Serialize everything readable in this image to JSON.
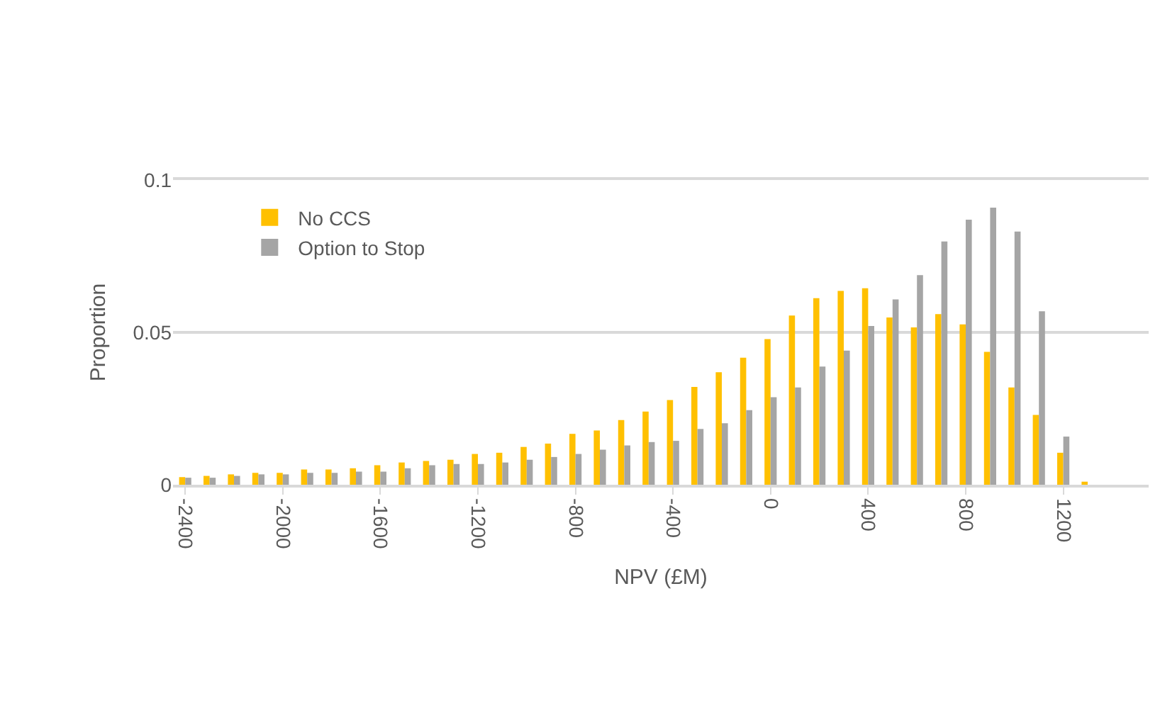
{
  "chart_data": {
    "type": "bar",
    "xlabel": "NPV (£M)",
    "ylabel": "Proportion",
    "categories": [
      "-2400",
      null,
      null,
      null,
      "-2000",
      null,
      null,
      null,
      "-1600",
      null,
      null,
      null,
      "-1200",
      null,
      null,
      null,
      "-800",
      null,
      null,
      null,
      "-400",
      null,
      null,
      null,
      "0",
      null,
      null,
      null,
      "400",
      null,
      null,
      null,
      "800",
      null,
      null,
      null,
      "1200",
      null,
      null,
      null
    ],
    "series": [
      {
        "name": "No CCS",
        "color": "#ffc000",
        "values": [
          0.0025,
          0.0029,
          0.0034,
          0.0039,
          0.0039,
          0.005,
          0.005,
          0.0054,
          0.0064,
          0.0073,
          0.0078,
          0.0082,
          0.0101,
          0.0105,
          0.0124,
          0.0135,
          0.0167,
          0.0178,
          0.0212,
          0.024,
          0.0278,
          0.0321,
          0.0369,
          0.0417,
          0.0478,
          0.0555,
          0.0612,
          0.0636,
          0.0645,
          0.0549,
          0.0516,
          0.056,
          0.0526,
          0.0436,
          0.0319,
          0.0229,
          0.0105,
          0.001,
          0,
          0
        ]
      },
      {
        "name": "Option to Stop",
        "color": "#a5a5a5",
        "values": [
          0.0023,
          0.0023,
          0.0029,
          0.0034,
          0.0034,
          0.0039,
          0.0039,
          0.0043,
          0.0043,
          0.0054,
          0.0064,
          0.0068,
          0.0068,
          0.0073,
          0.0082,
          0.0091,
          0.0101,
          0.0115,
          0.0129,
          0.014,
          0.0144,
          0.0183,
          0.0202,
          0.0245,
          0.0287,
          0.0319,
          0.0388,
          0.044,
          0.0521,
          0.0608,
          0.0688,
          0.0798,
          0.087,
          0.0909,
          0.0831,
          0.0569,
          0.0158,
          0,
          0,
          0
        ]
      }
    ],
    "ylim": [
      0,
      0.1
    ],
    "yticks": [
      0,
      0.05,
      0.1
    ],
    "grid": "y",
    "legend": "top left"
  }
}
